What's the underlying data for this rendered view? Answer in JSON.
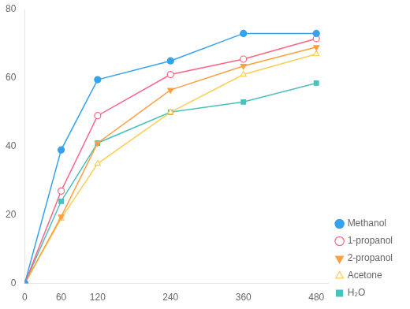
{
  "chart_data": {
    "type": "line",
    "x": [
      0,
      60,
      120,
      240,
      360,
      480
    ],
    "series": [
      {
        "name": "Methanol",
        "values": [
          0,
          39,
          59.5,
          65,
          73,
          73
        ],
        "marker": "circle"
      },
      {
        "name": "1-propanol",
        "values": [
          0,
          27,
          49,
          61,
          65.5,
          71.5
        ],
        "marker": "circle-open"
      },
      {
        "name": "2-propanol",
        "values": [
          0,
          19.5,
          41,
          56.5,
          63.5,
          69
        ],
        "marker": "triangle-down"
      },
      {
        "name": "Acetone",
        "values": [
          0,
          19,
          35,
          50,
          61,
          67
        ],
        "marker": "triangle-open"
      },
      {
        "name": "H₂O",
        "values": [
          0,
          24,
          41,
          50,
          53,
          58.5
        ],
        "marker": "square"
      }
    ],
    "xlim": [
      0,
      500
    ],
    "ylim": [
      0,
      80
    ],
    "xticks": [
      0,
      60,
      120,
      240,
      360,
      480
    ],
    "yticks": [
      0,
      20,
      40,
      60,
      80
    ],
    "grid": false,
    "legend": "lower right"
  }
}
